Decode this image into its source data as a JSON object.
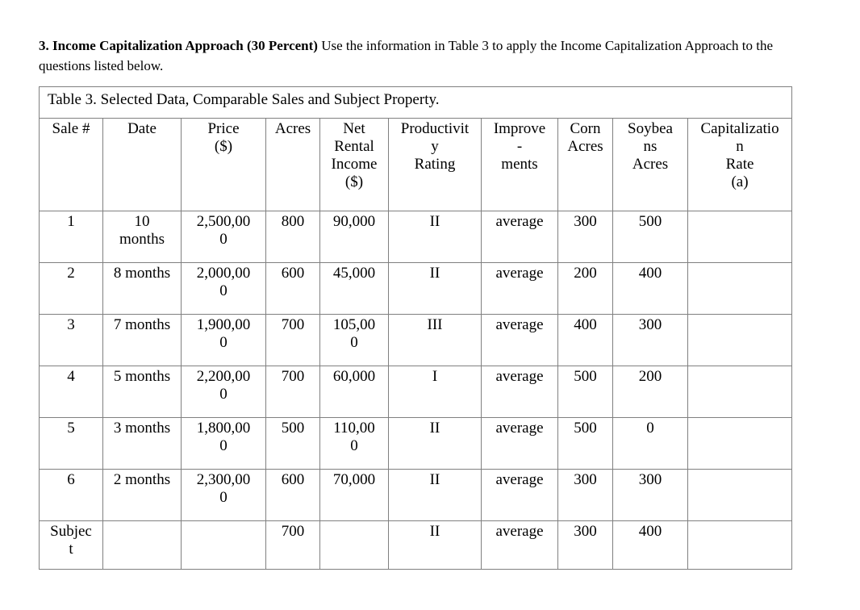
{
  "page": {
    "heading_bold": "3. Income Capitalization Approach (30 Percent)",
    "heading_rest": " Use the information in Table 3 to apply the Income Capitalization Approach to the questions listed below."
  },
  "table": {
    "caption": "Table 3. Selected Data, Comparable Sales and Subject Property.",
    "columns": [
      {
        "label": "Sale #"
      },
      {
        "label": "Date"
      },
      {
        "label": "Price\n($)"
      },
      {
        "label": "Acres"
      },
      {
        "label": "Net\nRental\nIncome\n($)"
      },
      {
        "label": "Productivit\ny\nRating"
      },
      {
        "label": "Improve\n-\nments"
      },
      {
        "label": "Corn\nAcres"
      },
      {
        "label": "Soybea\nns\nAcres"
      },
      {
        "label": "Capitalizatio\nn\nRate\n(a)"
      }
    ],
    "rows": [
      [
        "1",
        "10\nmonths",
        "2,500,00\n0",
        "800",
        "90,000",
        "II",
        "average",
        "300",
        "500",
        ""
      ],
      [
        "2",
        "8 months",
        "2,000,00\n0",
        "600",
        "45,000",
        "II",
        "average",
        "200",
        "400",
        ""
      ],
      [
        "3",
        "7 months",
        "1,900,00\n0",
        "700",
        "105,00\n0",
        "III",
        "average",
        "400",
        "300",
        ""
      ],
      [
        "4",
        "5 months",
        "2,200,00\n0",
        "700",
        "60,000",
        "I",
        "average",
        "500",
        "200",
        ""
      ],
      [
        "5",
        "3 months",
        "1,800,00\n0",
        "500",
        "110,00\n0",
        "II",
        "average",
        "500",
        "0",
        ""
      ],
      [
        "6",
        "2 months",
        "2,300,00\n0",
        "600",
        "70,000",
        "II",
        "average",
        "300",
        "300",
        ""
      ],
      [
        "Subjec\nt",
        "",
        "",
        "700",
        "",
        "II",
        "average",
        "300",
        "400",
        ""
      ]
    ]
  }
}
